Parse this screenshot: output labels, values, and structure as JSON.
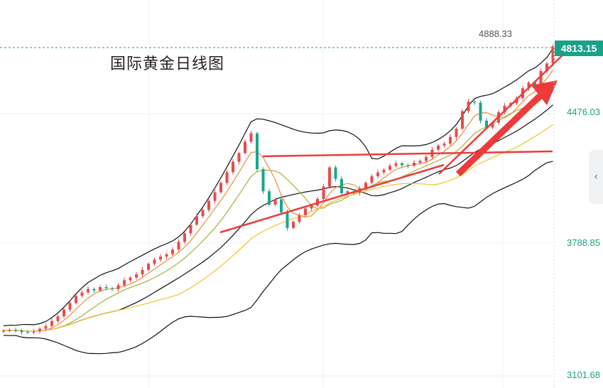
{
  "chart_data": {
    "type": "candlestick",
    "title": "国际黄金日线图",
    "y_ticks": [
      "4476.03",
      "3788.85",
      "3101.68"
    ],
    "last_price": "4813.15",
    "high_marker": "4888.33",
    "ylim": [
      3101.68,
      5060
    ],
    "colors": {
      "up": "#e84b4b",
      "down": "#1aa68b",
      "trend": "#ee3a3a",
      "ma_short": "#f08a3c",
      "ma_mid": "#a5b23a",
      "ma_long": "#f2c230",
      "band": "#111111",
      "price_line": "#19a289"
    },
    "indicators": [
      "moving averages",
      "bollinger bands"
    ],
    "series": [
      {
        "values": [
          3330,
          3332,
          3331,
          3322,
          3320,
          3325,
          3340,
          3354,
          3380,
          3405,
          3440,
          3475,
          3512,
          3530,
          3548,
          3540,
          3558,
          3552,
          3548,
          3568,
          3594,
          3608,
          3625,
          3648,
          3680,
          3702,
          3718,
          3730,
          3755,
          3795,
          3840,
          3885,
          3930,
          3962,
          4010,
          4055,
          4104,
          4160,
          4215,
          4260,
          4320,
          4364,
          4176,
          4060,
          3990,
          4018,
          3950,
          3868,
          3900,
          3935,
          3970,
          3985,
          4020,
          4085,
          4185,
          4125,
          4050,
          4060,
          4052,
          4075,
          4105,
          4139,
          4159,
          4173,
          4194,
          4207,
          4197,
          4194,
          4210,
          4220,
          4240,
          4278,
          4300,
          4310,
          4345,
          4388,
          4480,
          4530,
          4525,
          4430,
          4395,
          4420,
          4475,
          4508,
          4522,
          4548,
          4600,
          4630,
          4610,
          4690,
          4730,
          4820
        ]
      }
    ]
  },
  "ui": {
    "collapse_icon": "chevron-left-icon"
  }
}
